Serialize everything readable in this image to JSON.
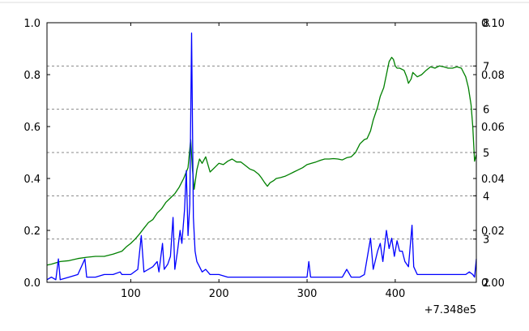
{
  "chart_data": {
    "type": "line",
    "title": "",
    "x_offset_label": "+7.348e5",
    "xlim": [
      5,
      492
    ],
    "x_ticks": [
      100,
      200,
      300,
      400
    ],
    "x_tick_labels": [
      "100",
      "200",
      "300",
      "400"
    ],
    "grid": "horizontal dashed, from right axis (1-8)",
    "axes": [
      {
        "name": "left",
        "position": "left",
        "ylim": [
          0.0,
          1.0
        ],
        "ticks": [
          0.0,
          0.2,
          0.4,
          0.6,
          0.8,
          1.0
        ],
        "tick_labels": [
          "0.0",
          "0.2",
          "0.4",
          "0.6",
          "0.8",
          "1.0"
        ]
      },
      {
        "name": "right-1",
        "position": "right",
        "ylim": [
          2,
          8
        ],
        "ticks": [
          2,
          3,
          4,
          5,
          6,
          7,
          8
        ],
        "tick_labels": [
          "2",
          "3",
          "4",
          "5",
          "6",
          "7",
          "8"
        ]
      },
      {
        "name": "right-2",
        "position": "right",
        "ylim": [
          0.0,
          0.1
        ],
        "ticks": [
          0.0,
          0.02,
          0.04,
          0.06,
          0.08,
          0.1
        ],
        "tick_labels": [
          "0.00",
          "0.02",
          "0.04",
          "0.06",
          "0.08",
          "0.10"
        ]
      }
    ],
    "series": [
      {
        "color": "#008000",
        "axis": "right-1",
        "points": [
          [
            5,
            2.4
          ],
          [
            10,
            2.42
          ],
          [
            20,
            2.48
          ],
          [
            30,
            2.5
          ],
          [
            40,
            2.55
          ],
          [
            50,
            2.58
          ],
          [
            60,
            2.6
          ],
          [
            70,
            2.6
          ],
          [
            80,
            2.65
          ],
          [
            90,
            2.72
          ],
          [
            95,
            2.82
          ],
          [
            100,
            2.9
          ],
          [
            105,
            3.0
          ],
          [
            110,
            3.12
          ],
          [
            115,
            3.25
          ],
          [
            120,
            3.38
          ],
          [
            125,
            3.45
          ],
          [
            130,
            3.6
          ],
          [
            135,
            3.7
          ],
          [
            140,
            3.85
          ],
          [
            145,
            3.95
          ],
          [
            150,
            4.05
          ],
          [
            155,
            4.2
          ],
          [
            160,
            4.4
          ],
          [
            165,
            4.65
          ],
          [
            168,
            5.3
          ],
          [
            170,
            4.6
          ],
          [
            172,
            4.15
          ],
          [
            175,
            4.6
          ],
          [
            178,
            4.85
          ],
          [
            181,
            4.75
          ],
          [
            185,
            4.9
          ],
          [
            190,
            4.55
          ],
          [
            195,
            4.65
          ],
          [
            200,
            4.75
          ],
          [
            205,
            4.72
          ],
          [
            210,
            4.8
          ],
          [
            215,
            4.85
          ],
          [
            220,
            4.78
          ],
          [
            225,
            4.78
          ],
          [
            230,
            4.7
          ],
          [
            235,
            4.62
          ],
          [
            240,
            4.58
          ],
          [
            245,
            4.5
          ],
          [
            248,
            4.42
          ],
          [
            252,
            4.3
          ],
          [
            255,
            4.22
          ],
          [
            258,
            4.3
          ],
          [
            262,
            4.35
          ],
          [
            265,
            4.4
          ],
          [
            270,
            4.42
          ],
          [
            275,
            4.45
          ],
          [
            280,
            4.5
          ],
          [
            285,
            4.55
          ],
          [
            290,
            4.6
          ],
          [
            295,
            4.65
          ],
          [
            300,
            4.72
          ],
          [
            305,
            4.75
          ],
          [
            310,
            4.78
          ],
          [
            315,
            4.82
          ],
          [
            320,
            4.85
          ],
          [
            325,
            4.85
          ],
          [
            330,
            4.86
          ],
          [
            335,
            4.85
          ],
          [
            340,
            4.83
          ],
          [
            345,
            4.88
          ],
          [
            350,
            4.9
          ],
          [
            355,
            5.0
          ],
          [
            360,
            5.2
          ],
          [
            365,
            5.3
          ],
          [
            368,
            5.32
          ],
          [
            372,
            5.5
          ],
          [
            375,
            5.75
          ],
          [
            380,
            6.05
          ],
          [
            383,
            6.3
          ],
          [
            387,
            6.5
          ],
          [
            390,
            6.8
          ],
          [
            393,
            7.1
          ],
          [
            396,
            7.2
          ],
          [
            398,
            7.15
          ],
          [
            400,
            7.0
          ],
          [
            402,
            6.95
          ],
          [
            405,
            6.95
          ],
          [
            410,
            6.9
          ],
          [
            413,
            6.75
          ],
          [
            415,
            6.6
          ],
          [
            418,
            6.7
          ],
          [
            420,
            6.85
          ],
          [
            425,
            6.75
          ],
          [
            430,
            6.8
          ],
          [
            435,
            6.9
          ],
          [
            440,
            6.98
          ],
          [
            445,
            6.95
          ],
          [
            450,
            7.0
          ],
          [
            455,
            6.98
          ],
          [
            460,
            6.95
          ],
          [
            465,
            6.95
          ],
          [
            470,
            6.98
          ],
          [
            475,
            6.95
          ],
          [
            480,
            6.75
          ],
          [
            483,
            6.5
          ],
          [
            486,
            6.1
          ],
          [
            488,
            5.6
          ],
          [
            490,
            4.8
          ],
          [
            492,
            4.95
          ]
        ]
      },
      {
        "color": "#0000ff",
        "axis": "right-2",
        "points": [
          [
            5,
            0.001
          ],
          [
            10,
            0.002
          ],
          [
            15,
            0.001
          ],
          [
            18,
            0.009
          ],
          [
            20,
            0.001
          ],
          [
            30,
            0.002
          ],
          [
            40,
            0.003
          ],
          [
            48,
            0.009
          ],
          [
            50,
            0.002
          ],
          [
            60,
            0.002
          ],
          [
            70,
            0.003
          ],
          [
            80,
            0.003
          ],
          [
            88,
            0.004
          ],
          [
            90,
            0.003
          ],
          [
            100,
            0.003
          ],
          [
            108,
            0.005
          ],
          [
            112,
            0.018
          ],
          [
            115,
            0.004
          ],
          [
            120,
            0.005
          ],
          [
            125,
            0.006
          ],
          [
            130,
            0.008
          ],
          [
            132,
            0.004
          ],
          [
            136,
            0.015
          ],
          [
            138,
            0.005
          ],
          [
            142,
            0.007
          ],
          [
            145,
            0.01
          ],
          [
            148,
            0.025
          ],
          [
            150,
            0.005
          ],
          [
            153,
            0.012
          ],
          [
            156,
            0.02
          ],
          [
            158,
            0.015
          ],
          [
            161,
            0.028
          ],
          [
            163,
            0.043
          ],
          [
            165,
            0.018
          ],
          [
            167,
            0.03
          ],
          [
            169,
            0.096
          ],
          [
            171,
            0.025
          ],
          [
            173,
            0.012
          ],
          [
            175,
            0.008
          ],
          [
            178,
            0.006
          ],
          [
            181,
            0.004
          ],
          [
            185,
            0.005
          ],
          [
            190,
            0.003
          ],
          [
            200,
            0.003
          ],
          [
            210,
            0.002
          ],
          [
            220,
            0.002
          ],
          [
            230,
            0.002
          ],
          [
            240,
            0.002
          ],
          [
            250,
            0.002
          ],
          [
            260,
            0.002
          ],
          [
            270,
            0.002
          ],
          [
            280,
            0.002
          ],
          [
            290,
            0.002
          ],
          [
            300,
            0.002
          ],
          [
            302,
            0.008
          ],
          [
            304,
            0.002
          ],
          [
            310,
            0.002
          ],
          [
            320,
            0.002
          ],
          [
            330,
            0.002
          ],
          [
            340,
            0.002
          ],
          [
            345,
            0.005
          ],
          [
            350,
            0.002
          ],
          [
            360,
            0.002
          ],
          [
            365,
            0.003
          ],
          [
            372,
            0.017
          ],
          [
            375,
            0.005
          ],
          [
            380,
            0.012
          ],
          [
            383,
            0.015
          ],
          [
            386,
            0.008
          ],
          [
            390,
            0.02
          ],
          [
            393,
            0.013
          ],
          [
            396,
            0.017
          ],
          [
            399,
            0.01
          ],
          [
            402,
            0.016
          ],
          [
            405,
            0.012
          ],
          [
            408,
            0.012
          ],
          [
            411,
            0.008
          ],
          [
            415,
            0.006
          ],
          [
            419,
            0.022
          ],
          [
            421,
            0.006
          ],
          [
            425,
            0.003
          ],
          [
            430,
            0.003
          ],
          [
            440,
            0.003
          ],
          [
            450,
            0.003
          ],
          [
            460,
            0.003
          ],
          [
            470,
            0.003
          ],
          [
            480,
            0.003
          ],
          [
            484,
            0.004
          ],
          [
            488,
            0.003
          ],
          [
            490,
            0.002
          ],
          [
            492,
            0.009
          ]
        ]
      }
    ]
  }
}
